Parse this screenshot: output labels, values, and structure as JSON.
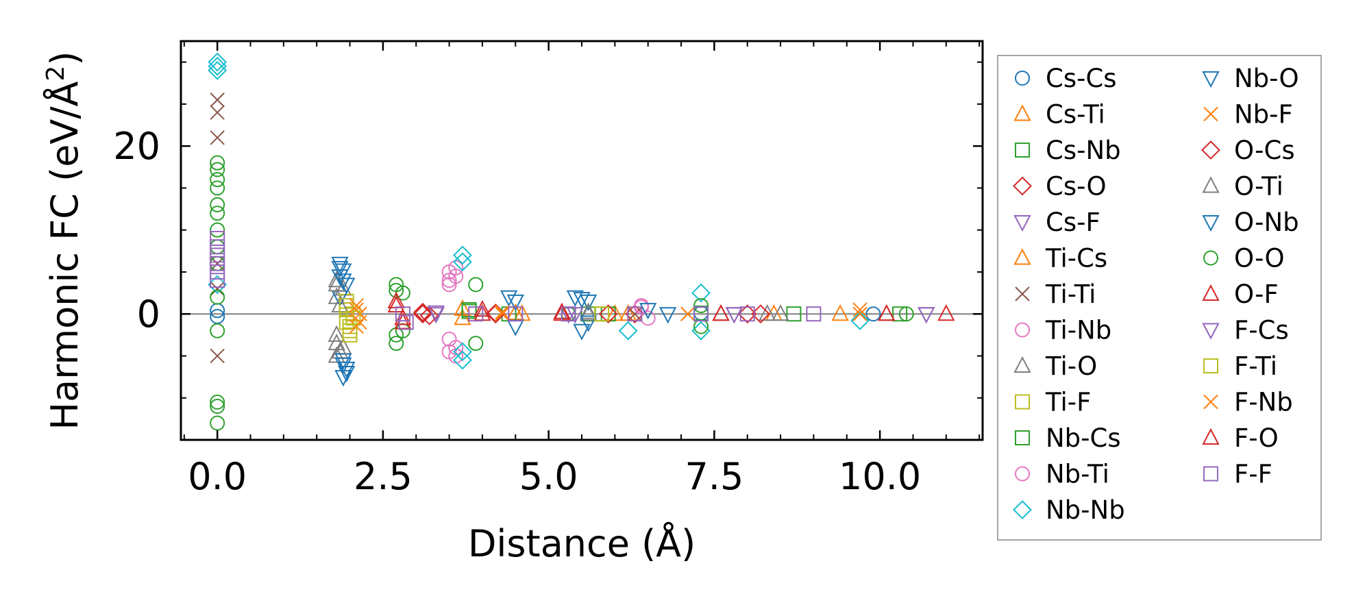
{
  "chart_data": {
    "type": "scatter",
    "title": "",
    "xlabel": "Distance (Å)",
    "ylabel_main": "Harmonic FC (eV/Å",
    "ylabel_sup": "2",
    "ylabel_close": ")",
    "xlim": [
      -0.55,
      11.55
    ],
    "ylim": [
      -15,
      32.5
    ],
    "xticks": [
      0.0,
      2.5,
      5.0,
      7.5,
      10.0
    ],
    "xtick_labels": [
      "0.0",
      "2.5",
      "5.0",
      "7.5",
      "10.0"
    ],
    "yticks": [
      0,
      20
    ],
    "ytick_labels": [
      "0",
      "20"
    ],
    "x_minor_step": 0.5,
    "y_minor_step": 5,
    "zero_line": true,
    "legend_position": "outside-right",
    "series": [
      {
        "name": "Cs-Cs",
        "marker": "circle",
        "color": "#1f77b4",
        "points": [
          [
            0,
            0.4
          ],
          [
            0,
            -0.3
          ],
          [
            7.3,
            0.1
          ],
          [
            9.9,
            0.0
          ]
        ]
      },
      {
        "name": "Cs-Ti",
        "marker": "triangle-up",
        "color": "#ff7f0e",
        "points": [
          [
            3.7,
            0.6
          ],
          [
            4.5,
            0.1
          ],
          [
            6.0,
            0.0
          ],
          [
            8.4,
            0.0
          ]
        ]
      },
      {
        "name": "Cs-Nb",
        "marker": "square",
        "color": "#2ca02c",
        "points": [
          [
            3.8,
            0.3
          ],
          [
            5.6,
            0.0
          ],
          [
            7.3,
            0.1
          ],
          [
            10.3,
            0.0
          ]
        ]
      },
      {
        "name": "Cs-O",
        "marker": "diamond",
        "color": "#d62728",
        "points": [
          [
            3.1,
            0.0
          ],
          [
            4.2,
            0.1
          ],
          [
            6.3,
            0.0
          ],
          [
            8.0,
            0.0
          ]
        ]
      },
      {
        "name": "Cs-F",
        "marker": "triangle-down",
        "color": "#9467bd",
        "points": [
          [
            3.3,
            0.0
          ],
          [
            5.3,
            0.0
          ],
          [
            7.8,
            0.0
          ],
          [
            10.7,
            0.0
          ]
        ]
      },
      {
        "name": "Ti-Cs",
        "marker": "triangle-up",
        "color": "#ff7f0e",
        "points": [
          [
            3.7,
            -0.5
          ],
          [
            4.6,
            0.0
          ],
          [
            6.2,
            0.0
          ],
          [
            9.4,
            0.0
          ]
        ]
      },
      {
        "name": "Ti-Ti",
        "marker": "x",
        "color": "#8c564b",
        "points": [
          [
            0,
            25.5
          ],
          [
            0,
            24
          ],
          [
            0,
            21
          ],
          [
            0,
            6
          ],
          [
            0,
            3
          ],
          [
            0,
            -5
          ],
          [
            6.3,
            0.0
          ]
        ]
      },
      {
        "name": "Ti-Nb",
        "marker": "circle",
        "color": "#e377c2",
        "points": [
          [
            3.5,
            5.0
          ],
          [
            3.5,
            3.5
          ],
          [
            3.5,
            -4.5
          ],
          [
            3.6,
            5.5
          ],
          [
            3.6,
            -5.0
          ],
          [
            6.4,
            1.0
          ],
          [
            6.5,
            -0.5
          ]
        ]
      },
      {
        "name": "Ti-O",
        "marker": "triangle-up",
        "color": "#7f7f7f",
        "points": [
          [
            1.8,
            4.0
          ],
          [
            1.8,
            2.0
          ],
          [
            1.8,
            -2.5
          ],
          [
            1.8,
            -5.0
          ],
          [
            1.9,
            3.0
          ],
          [
            1.9,
            -4.0
          ],
          [
            5.6,
            0.0
          ],
          [
            8.3,
            0.0
          ]
        ]
      },
      {
        "name": "Ti-F",
        "marker": "square",
        "color": "#bcbd22",
        "points": [
          [
            1.95,
            1.5
          ],
          [
            1.95,
            0.5
          ],
          [
            1.95,
            -1.0
          ],
          [
            2.0,
            -2.5
          ],
          [
            2.0,
            -1.5
          ],
          [
            2.05,
            0.0
          ],
          [
            5.8,
            0.0
          ]
        ]
      },
      {
        "name": "Nb-Cs",
        "marker": "square",
        "color": "#2ca02c",
        "points": [
          [
            3.8,
            0.5
          ],
          [
            4.4,
            0.0
          ],
          [
            5.9,
            0.0
          ],
          [
            8.7,
            0.0
          ]
        ]
      },
      {
        "name": "Nb-Ti",
        "marker": "circle",
        "color": "#e377c2",
        "points": [
          [
            3.5,
            4.0
          ],
          [
            3.5,
            -3.0
          ],
          [
            3.6,
            4.5
          ],
          [
            3.6,
            -4.0
          ],
          [
            6.4,
            0.8
          ]
        ]
      },
      {
        "name": "Nb-Nb",
        "marker": "diamond",
        "color": "#17becf",
        "points": [
          [
            0,
            30
          ],
          [
            0,
            29.5
          ],
          [
            0,
            29
          ],
          [
            0,
            3.5
          ],
          [
            3.7,
            7
          ],
          [
            3.7,
            6.2
          ],
          [
            3.7,
            -5.5
          ],
          [
            3.7,
            -4.5
          ],
          [
            6.2,
            -2.0
          ],
          [
            7.3,
            2.5
          ],
          [
            7.3,
            -2.0
          ],
          [
            9.7,
            -0.8
          ]
        ]
      },
      {
        "name": "Nb-O",
        "marker": "triangle-down",
        "color": "#1f77b4",
        "points": [
          [
            1.85,
            6
          ],
          [
            1.85,
            4.5
          ],
          [
            1.85,
            2.0
          ],
          [
            1.9,
            5.2
          ],
          [
            1.9,
            -5.5
          ],
          [
            1.9,
            -7.5
          ],
          [
            1.95,
            3.5
          ],
          [
            1.95,
            -6.5
          ],
          [
            4.4,
            2.0
          ],
          [
            4.5,
            -1.5
          ],
          [
            5.4,
            2.0
          ],
          [
            5.5,
            -2.0
          ],
          [
            5.6,
            1.5
          ],
          [
            6.5,
            0.5
          ]
        ]
      },
      {
        "name": "Nb-F",
        "marker": "x",
        "color": "#ff7f0e",
        "points": [
          [
            2.1,
            0.5
          ],
          [
            2.1,
            -1.5
          ],
          [
            2.15,
            0.0
          ],
          [
            4.3,
            0.0
          ],
          [
            7.1,
            0.0
          ],
          [
            9.7,
            0.5
          ]
        ]
      },
      {
        "name": "O-Cs",
        "marker": "diamond",
        "color": "#d62728",
        "points": [
          [
            3.1,
            0.2
          ],
          [
            3.2,
            -0.2
          ],
          [
            4.2,
            0.0
          ],
          [
            5.9,
            0.0
          ],
          [
            8.2,
            0.0
          ]
        ]
      },
      {
        "name": "O-Ti",
        "marker": "triangle-up",
        "color": "#7f7f7f",
        "points": [
          [
            1.8,
            3.5
          ],
          [
            1.8,
            -3.5
          ],
          [
            1.85,
            1.0
          ],
          [
            1.85,
            -4.5
          ],
          [
            5.6,
            0.2
          ],
          [
            8.5,
            0.0
          ]
        ]
      },
      {
        "name": "O-Nb",
        "marker": "triangle-down",
        "color": "#1f77b4",
        "points": [
          [
            1.85,
            5.5
          ],
          [
            1.9,
            4.0
          ],
          [
            1.9,
            -6.0
          ],
          [
            1.95,
            -7.0
          ],
          [
            4.5,
            1.5
          ],
          [
            5.5,
            1.8
          ],
          [
            5.6,
            -1.0
          ],
          [
            6.8,
            0.0
          ]
        ]
      },
      {
        "name": "O-O",
        "marker": "circle",
        "color": "#2ca02c",
        "points": [
          [
            0,
            18
          ],
          [
            0,
            17.2
          ],
          [
            0,
            16
          ],
          [
            0,
            15
          ],
          [
            0,
            13
          ],
          [
            0,
            12
          ],
          [
            0,
            10
          ],
          [
            0,
            8
          ],
          [
            0,
            6
          ],
          [
            0,
            2
          ],
          [
            0,
            -2
          ],
          [
            0,
            -10.5
          ],
          [
            0,
            -11
          ],
          [
            0,
            -13
          ],
          [
            2.7,
            3.5
          ],
          [
            2.7,
            2.8
          ],
          [
            2.7,
            -2.5
          ],
          [
            2.7,
            -3.5
          ],
          [
            2.8,
            2.5
          ],
          [
            2.8,
            -2.0
          ],
          [
            3.9,
            3.5
          ],
          [
            3.9,
            -3.5
          ],
          [
            5.3,
            0.0
          ],
          [
            7.3,
            1.0
          ],
          [
            7.3,
            -1.5
          ],
          [
            10.4,
            0.0
          ]
        ]
      },
      {
        "name": "O-F",
        "marker": "triangle-up",
        "color": "#d62728",
        "points": [
          [
            2.7,
            1.5
          ],
          [
            2.8,
            -1.0
          ],
          [
            4.0,
            0.5
          ],
          [
            5.2,
            0.0
          ],
          [
            7.6,
            0.0
          ],
          [
            10.1,
            0.0
          ],
          [
            11.0,
            0.0
          ]
        ]
      },
      {
        "name": "F-Cs",
        "marker": "triangle-down",
        "color": "#9467bd",
        "points": [
          [
            3.3,
            0.2
          ],
          [
            5.4,
            0.0
          ],
          [
            7.8,
            0.0
          ],
          [
            10.7,
            0.0
          ]
        ]
      },
      {
        "name": "F-Ti",
        "marker": "square",
        "color": "#bcbd22",
        "points": [
          [
            1.95,
            1.0
          ],
          [
            2.0,
            -2.0
          ],
          [
            2.05,
            -0.5
          ],
          [
            5.8,
            0.0
          ]
        ]
      },
      {
        "name": "F-Nb",
        "marker": "x",
        "color": "#ff7f0e",
        "points": [
          [
            2.1,
            1.0
          ],
          [
            2.15,
            -1.0
          ],
          [
            4.3,
            0.2
          ],
          [
            7.1,
            0.0
          ],
          [
            9.7,
            0.0
          ]
        ]
      },
      {
        "name": "F-O",
        "marker": "triangle-up",
        "color": "#d62728",
        "points": [
          [
            2.7,
            1.0
          ],
          [
            2.8,
            -0.5
          ],
          [
            4.0,
            0.0
          ],
          [
            5.2,
            0.2
          ],
          [
            7.6,
            0.0
          ],
          [
            10.1,
            0.0
          ]
        ]
      },
      {
        "name": "F-F",
        "marker": "square",
        "color": "#9467bd",
        "points": [
          [
            0,
            9
          ],
          [
            0,
            8
          ],
          [
            0,
            7
          ],
          [
            0,
            6
          ],
          [
            0,
            5
          ],
          [
            0,
            4
          ],
          [
            2.8,
            0.0
          ],
          [
            2.85,
            -1.0
          ],
          [
            3.9,
            0.0
          ],
          [
            4.5,
            0.0
          ],
          [
            5.3,
            0.0
          ],
          [
            6.3,
            0.0
          ],
          [
            7.3,
            0.0
          ],
          [
            8.0,
            0.0
          ],
          [
            9.0,
            0.0
          ]
        ]
      }
    ]
  }
}
